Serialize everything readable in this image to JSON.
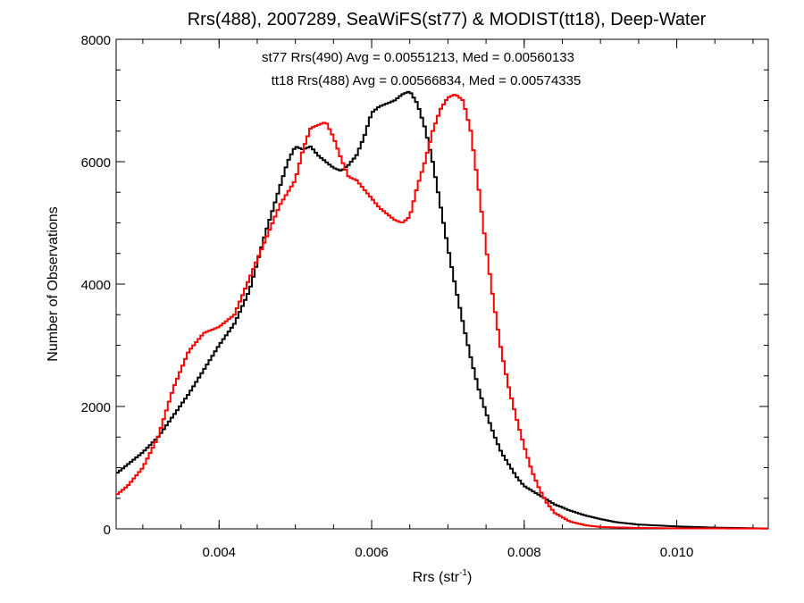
{
  "chart_data": {
    "type": "line",
    "title": "Rrs(488), 2007289, SeaWiFS(st77) & MODIST(tt18), Deep-Water",
    "xlabel": "Rrs (str",
    "xlabel_sup": "-1",
    "xlabel_close": ")",
    "ylabel": "Number of Observations",
    "xlim": [
      0.00265,
      0.0112
    ],
    "ylim": [
      0,
      8000
    ],
    "xticks": [
      0.004,
      0.006,
      0.008,
      0.01
    ],
    "xtick_labels": [
      "0.004",
      "0.006",
      "0.008",
      "0.010"
    ],
    "yticks": [
      0,
      2000,
      4000,
      6000,
      8000
    ],
    "ytick_labels": [
      "0",
      "2000",
      "4000",
      "6000",
      "8000"
    ],
    "grid": false,
    "step": true,
    "annotations": [
      {
        "text": "st77 Rrs(490) Avg = 0.00551213, Med = 0.00560133",
        "color": "#000000"
      },
      {
        "text": "tt18 Rrs(488) Avg = 0.00566834, Med = 0.00574335",
        "color": "#ff0000"
      }
    ],
    "series": [
      {
        "color": "#000000",
        "x": [
          0.00265,
          0.0028,
          0.003,
          0.0032,
          0.0034,
          0.0036,
          0.0038,
          0.004,
          0.0042,
          0.0044,
          0.0046,
          0.0048,
          0.0049,
          0.005,
          0.0051,
          0.0052,
          0.0053,
          0.0054,
          0.0055,
          0.0056,
          0.0057,
          0.0058,
          0.0059,
          0.006,
          0.0061,
          0.0062,
          0.0063,
          0.0064,
          0.0065,
          0.0066,
          0.0067,
          0.0068,
          0.0069,
          0.007,
          0.0071,
          0.0072,
          0.0073,
          0.0074,
          0.0075,
          0.0076,
          0.0077,
          0.0078,
          0.0079,
          0.008,
          0.0082,
          0.0084,
          0.0086,
          0.0088,
          0.009,
          0.0092,
          0.0095,
          0.01,
          0.0105,
          0.011,
          0.0112
        ],
        "y": [
          900,
          1050,
          1250,
          1500,
          1850,
          2200,
          2600,
          3000,
          3350,
          3900,
          4800,
          5600,
          6000,
          6250,
          6200,
          6250,
          6100,
          6000,
          5900,
          5850,
          5950,
          6100,
          6400,
          6800,
          6900,
          6950,
          7000,
          7100,
          7150,
          6950,
          6550,
          6000,
          5300,
          4600,
          3950,
          3350,
          2800,
          2300,
          1900,
          1550,
          1250,
          1050,
          850,
          700,
          550,
          400,
          300,
          220,
          160,
          110,
          70,
          40,
          20,
          10,
          5
        ]
      },
      {
        "color": "#ff0000",
        "x": [
          0.00265,
          0.0028,
          0.003,
          0.0032,
          0.0034,
          0.0036,
          0.0038,
          0.004,
          0.0042,
          0.0044,
          0.0046,
          0.0048,
          0.005,
          0.0051,
          0.0052,
          0.0053,
          0.0054,
          0.0055,
          0.0056,
          0.0057,
          0.0058,
          0.0059,
          0.006,
          0.0061,
          0.0062,
          0.0063,
          0.0064,
          0.0065,
          0.0066,
          0.0067,
          0.0068,
          0.0069,
          0.007,
          0.0071,
          0.0072,
          0.0073,
          0.0074,
          0.0075,
          0.0076,
          0.0077,
          0.0078,
          0.0079,
          0.008,
          0.0081,
          0.0082,
          0.0083,
          0.0084,
          0.0086,
          0.0088,
          0.009,
          0.0095,
          0.01,
          0.0112
        ],
        "y": [
          550,
          700,
          1000,
          1500,
          2300,
          2900,
          3200,
          3300,
          3500,
          4100,
          4700,
          5300,
          5700,
          6200,
          6550,
          6600,
          6650,
          6400,
          6050,
          5750,
          5700,
          5550,
          5400,
          5250,
          5150,
          5050,
          5000,
          5100,
          5600,
          6000,
          6500,
          6850,
          7050,
          7100,
          7000,
          6500,
          5600,
          4600,
          3700,
          2900,
          2300,
          1800,
          1350,
          950,
          650,
          420,
          260,
          120,
          60,
          30,
          15,
          8,
          5
        ]
      }
    ]
  }
}
